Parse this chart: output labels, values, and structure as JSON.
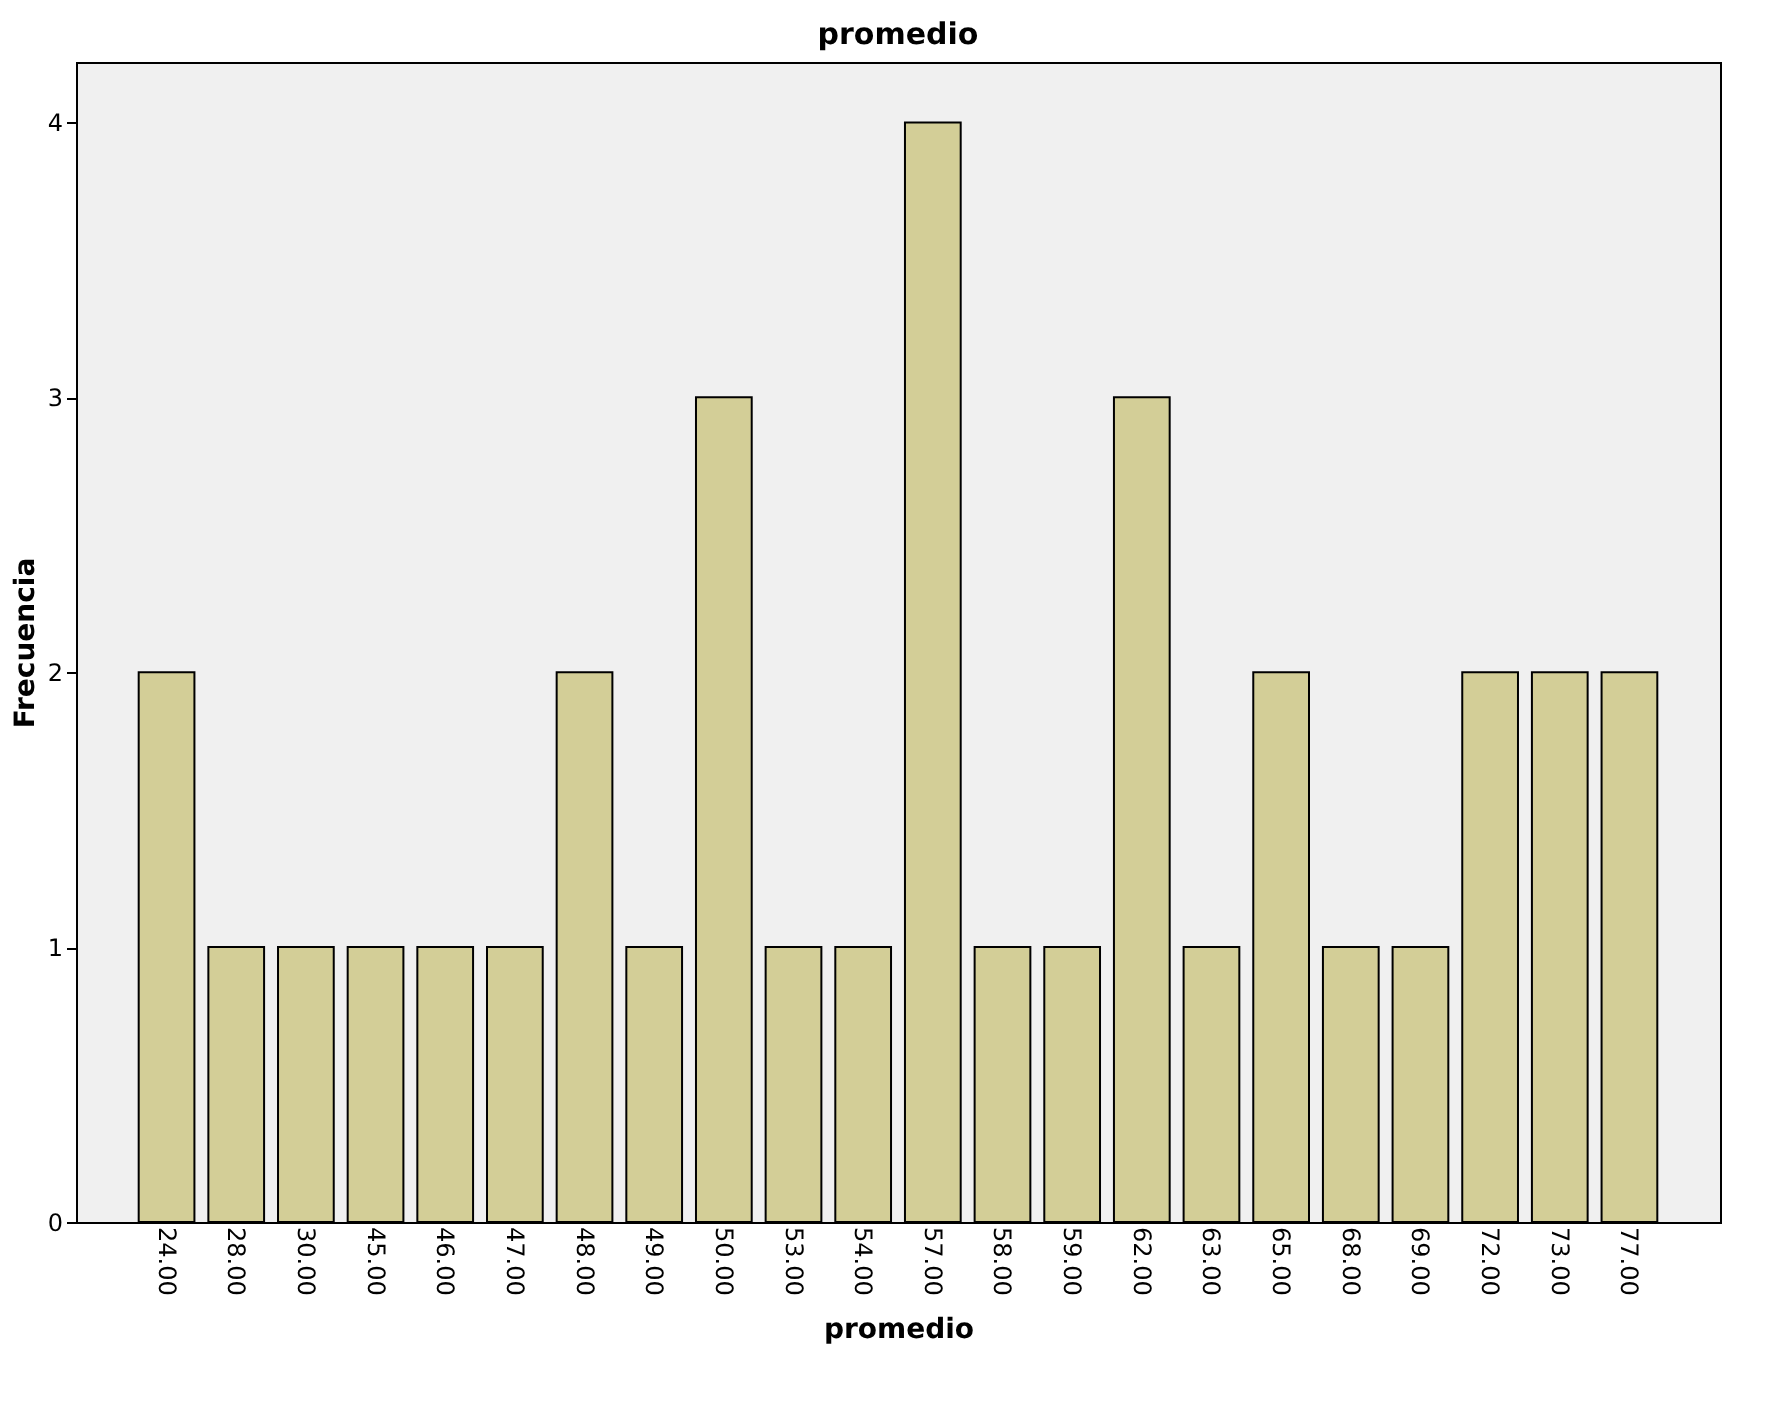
{
  "chart_data": {
    "type": "bar",
    "title": "promedio",
    "xlabel": "promedio",
    "ylabel": "Frecuencia",
    "categories": [
      "24.00",
      "28.00",
      "30.00",
      "45.00",
      "46.00",
      "47.00",
      "48.00",
      "49.00",
      "50.00",
      "53.00",
      "54.00",
      "57.00",
      "58.00",
      "59.00",
      "62.00",
      "63.00",
      "65.00",
      "68.00",
      "69.00",
      "72.00",
      "73.00",
      "77.00"
    ],
    "values": [
      2,
      1,
      1,
      1,
      1,
      1,
      2,
      1,
      3,
      1,
      1,
      4,
      1,
      1,
      3,
      1,
      2,
      1,
      1,
      2,
      2,
      2
    ],
    "color": "#d3ce97",
    "ylim": [
      0,
      4.22
    ],
    "yticks": [
      0,
      1,
      2,
      3,
      4
    ],
    "grid": false
  }
}
